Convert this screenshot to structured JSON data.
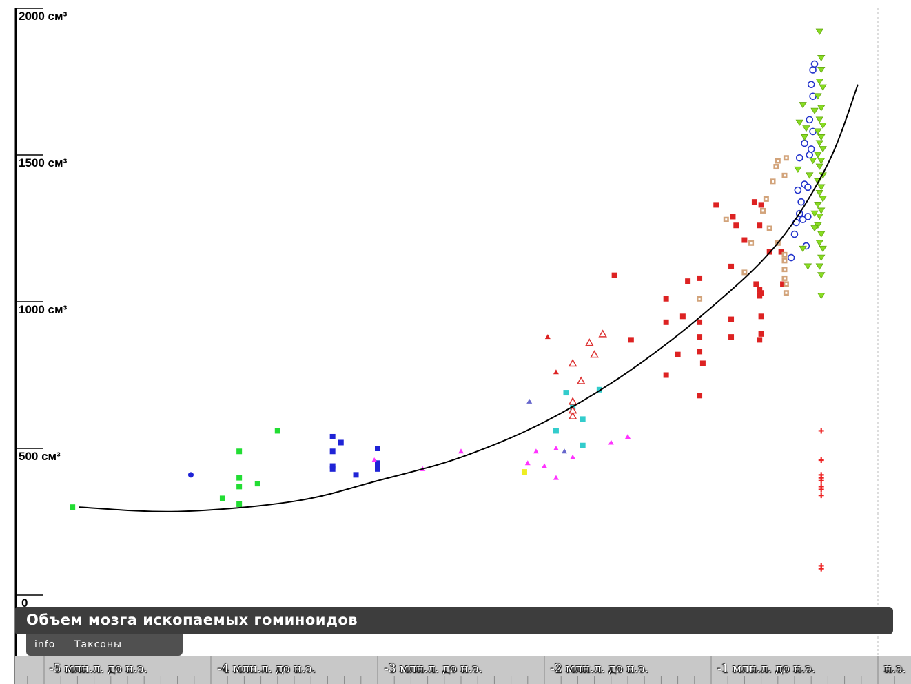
{
  "title": "Объем мозга ископаемых гоминоидов",
  "tabs": [
    "info",
    "Таксоны"
  ],
  "y_axis_labels": [
    "2000 см³",
    "1500 см³",
    "1000 см³",
    "500 см³",
    "0"
  ],
  "timeline_labels": [
    "-5 млн.л. до н.э.",
    "-4 млн.л. до н.э.",
    "-3 млн.л. до н.э.",
    "-2 млн.л. до н.э.",
    "-1 млн.л. до н.э.",
    "н.э."
  ],
  "chart_data": {
    "type": "scatter",
    "title": "Объем мозга ископаемых гоминоидов",
    "xlabel": "",
    "ylabel": "",
    "xlim": [
      -5.17,
      0
    ],
    "ylim": [
      0,
      2000
    ],
    "x_ticks": [
      -5,
      -4,
      -3,
      -2,
      -1,
      0
    ],
    "y_ticks": [
      0,
      500,
      1000,
      1500,
      2000
    ],
    "grid": false,
    "trend_curve": {
      "x": [
        -4.79,
        -4.2,
        -3.5,
        -3.0,
        -2.5,
        -2.0,
        -1.5,
        -1.0,
        -0.6,
        -0.3,
        -0.12
      ],
      "y": [
        300,
        285,
        320,
        390,
        470,
        590,
        760,
        980,
        1200,
        1470,
        1740
      ]
    },
    "series": [
      {
        "color": "#22dd33",
        "marker": "square",
        "points": [
          [
            -4.83,
            300
          ],
          [
            -3.83,
            310
          ],
          [
            -3.93,
            330
          ],
          [
            -3.83,
            370
          ],
          [
            -3.83,
            400
          ],
          [
            -3.72,
            380
          ],
          [
            -3.83,
            490
          ],
          [
            -3.6,
            560
          ]
        ]
      },
      {
        "color": "#1f23d6",
        "marker": "square",
        "points": [
          [
            -3.13,
            410
          ],
          [
            -3.27,
            430
          ],
          [
            -3.27,
            440
          ],
          [
            -3.27,
            490
          ],
          [
            -3.27,
            540
          ],
          [
            -3.22,
            520
          ],
          [
            -3.0,
            500
          ],
          [
            -3.0,
            450
          ],
          [
            -3.0,
            430
          ]
        ]
      },
      {
        "color": "#1f23d6",
        "marker": "circle",
        "points": [
          [
            -4.12,
            410
          ]
        ]
      },
      {
        "color": "#ff33ff",
        "marker": "triangle",
        "points": [
          [
            -2.73,
            430
          ],
          [
            -2.5,
            490
          ],
          [
            -2.1,
            450
          ],
          [
            -2.05,
            490
          ],
          [
            -2.0,
            440
          ],
          [
            -1.93,
            400
          ],
          [
            -1.93,
            500
          ],
          [
            -1.83,
            470
          ],
          [
            -1.6,
            520
          ],
          [
            -1.5,
            540
          ],
          [
            -3.02,
            460
          ]
        ]
      },
      {
        "color": "#eeee22",
        "marker": "square",
        "points": [
          [
            -2.12,
            420
          ]
        ]
      },
      {
        "color": "#6666cc",
        "marker": "triangle",
        "points": [
          [
            -2.09,
            660
          ],
          [
            -1.88,
            490
          ]
        ]
      },
      {
        "color": "#33cccc",
        "marker": "square",
        "points": [
          [
            -1.93,
            560
          ],
          [
            -1.87,
            690
          ],
          [
            -1.77,
            510
          ],
          [
            -1.77,
            600
          ],
          [
            -1.67,
            700
          ],
          [
            -1.83,
            640
          ]
        ]
      },
      {
        "color": "#dd3333",
        "marker": "triangle-open",
        "points": [
          [
            -1.83,
            610
          ],
          [
            -1.83,
            630
          ],
          [
            -1.83,
            660
          ],
          [
            -1.78,
            730
          ],
          [
            -1.83,
            790
          ],
          [
            -1.7,
            820
          ],
          [
            -1.73,
            860
          ],
          [
            -1.65,
            890
          ]
        ]
      },
      {
        "color": "#dd2222",
        "marker": "triangle",
        "points": [
          [
            -1.98,
            880
          ],
          [
            -1.93,
            760
          ]
        ]
      },
      {
        "color": "#dd2222",
        "marker": "square",
        "points": [
          [
            -1.58,
            1090
          ],
          [
            -1.48,
            870
          ],
          [
            -1.27,
            750
          ],
          [
            -1.27,
            1010
          ],
          [
            -1.27,
            930
          ],
          [
            -1.2,
            820
          ],
          [
            -1.17,
            950
          ],
          [
            -1.14,
            1070
          ],
          [
            -1.07,
            1080
          ],
          [
            -1.07,
            930
          ],
          [
            -1.07,
            880
          ],
          [
            -1.07,
            830
          ],
          [
            -1.05,
            790
          ],
          [
            -1.07,
            680
          ],
          [
            -0.97,
            1330
          ],
          [
            -0.88,
            880
          ],
          [
            -0.88,
            940
          ],
          [
            -0.88,
            1120
          ],
          [
            -0.87,
            1290
          ],
          [
            -0.85,
            1260
          ],
          [
            -0.73,
            1060
          ],
          [
            -0.71,
            1040
          ],
          [
            -0.71,
            1020
          ],
          [
            -0.7,
            1030
          ],
          [
            -0.7,
            950
          ],
          [
            -0.71,
            870
          ],
          [
            -0.7,
            890
          ],
          [
            -0.8,
            1210
          ],
          [
            -0.74,
            1340
          ],
          [
            -0.71,
            1260
          ],
          [
            -0.7,
            1330
          ],
          [
            -0.65,
            1170
          ],
          [
            -0.58,
            1170
          ],
          [
            -0.57,
            1060
          ]
        ]
      },
      {
        "color": "#d2a37a",
        "marker": "square-dot",
        "points": [
          [
            -1.07,
            1010
          ],
          [
            -0.91,
            1280
          ],
          [
            -0.76,
            1200
          ],
          [
            -0.8,
            1100
          ],
          [
            -0.69,
            1310
          ],
          [
            -0.67,
            1350
          ],
          [
            -0.63,
            1410
          ],
          [
            -0.61,
            1460
          ],
          [
            -0.6,
            1480
          ],
          [
            -0.56,
            1430
          ],
          [
            -0.55,
            1490
          ],
          [
            -0.65,
            1250
          ],
          [
            -0.6,
            1200
          ],
          [
            -0.56,
            1160
          ],
          [
            -0.56,
            1110
          ],
          [
            -0.55,
            1060
          ],
          [
            -0.55,
            1030
          ],
          [
            -0.56,
            1080
          ],
          [
            -0.56,
            1140
          ]
        ]
      },
      {
        "color": "#2233cc",
        "marker": "circle-open",
        "points": [
          [
            -0.5,
            1230
          ],
          [
            -0.52,
            1150
          ],
          [
            -0.49,
            1270
          ],
          [
            -0.47,
            1300
          ],
          [
            -0.45,
            1280
          ],
          [
            -0.42,
            1290
          ],
          [
            -0.46,
            1340
          ],
          [
            -0.48,
            1380
          ],
          [
            -0.44,
            1400
          ],
          [
            -0.42,
            1390
          ],
          [
            -0.43,
            1190
          ],
          [
            -0.41,
            1500
          ],
          [
            -0.44,
            1540
          ],
          [
            -0.4,
            1520
          ],
          [
            -0.39,
            1580
          ],
          [
            -0.41,
            1620
          ],
          [
            -0.39,
            1700
          ],
          [
            -0.4,
            1740
          ],
          [
            -0.38,
            1810
          ],
          [
            -0.39,
            1790
          ],
          [
            -0.47,
            1490
          ]
        ]
      },
      {
        "color": "#88dd22",
        "marker": "triangle-down",
        "points": [
          [
            -0.35,
            1920
          ],
          [
            -0.34,
            1830
          ],
          [
            -0.34,
            1790
          ],
          [
            -0.35,
            1750
          ],
          [
            -0.33,
            1730
          ],
          [
            -0.36,
            1700
          ],
          [
            -0.34,
            1660
          ],
          [
            -0.35,
            1620
          ],
          [
            -0.33,
            1600
          ],
          [
            -0.36,
            1580
          ],
          [
            -0.34,
            1560
          ],
          [
            -0.35,
            1540
          ],
          [
            -0.33,
            1520
          ],
          [
            -0.36,
            1500
          ],
          [
            -0.34,
            1480
          ],
          [
            -0.35,
            1460
          ],
          [
            -0.33,
            1430
          ],
          [
            -0.36,
            1410
          ],
          [
            -0.34,
            1390
          ],
          [
            -0.35,
            1370
          ],
          [
            -0.33,
            1350
          ],
          [
            -0.36,
            1330
          ],
          [
            -0.34,
            1310
          ],
          [
            -0.35,
            1290
          ],
          [
            -0.36,
            1260
          ],
          [
            -0.34,
            1230
          ],
          [
            -0.35,
            1200
          ],
          [
            -0.33,
            1180
          ],
          [
            -0.34,
            1150
          ],
          [
            -0.35,
            1120
          ],
          [
            -0.34,
            1090
          ],
          [
            -0.34,
            1020
          ],
          [
            -0.45,
            1670
          ],
          [
            -0.47,
            1610
          ],
          [
            -0.43,
            1590
          ],
          [
            -0.44,
            1560
          ],
          [
            -0.48,
            1450
          ],
          [
            -0.41,
            1430
          ],
          [
            -0.45,
            1180
          ],
          [
            -0.42,
            1120
          ],
          [
            -0.38,
            1300
          ],
          [
            -0.38,
            1250
          ],
          [
            -0.39,
            1480
          ],
          [
            -0.38,
            1650
          ]
        ]
      },
      {
        "color": "#ee2222",
        "marker": "cross",
        "points": [
          [
            -0.34,
            560
          ],
          [
            -0.34,
            460
          ],
          [
            -0.34,
            410
          ],
          [
            -0.34,
            400
          ],
          [
            -0.34,
            390
          ],
          [
            -0.34,
            370
          ],
          [
            -0.34,
            360
          ],
          [
            -0.34,
            340
          ],
          [
            -0.34,
            100
          ],
          [
            -0.34,
            90
          ]
        ]
      }
    ]
  }
}
